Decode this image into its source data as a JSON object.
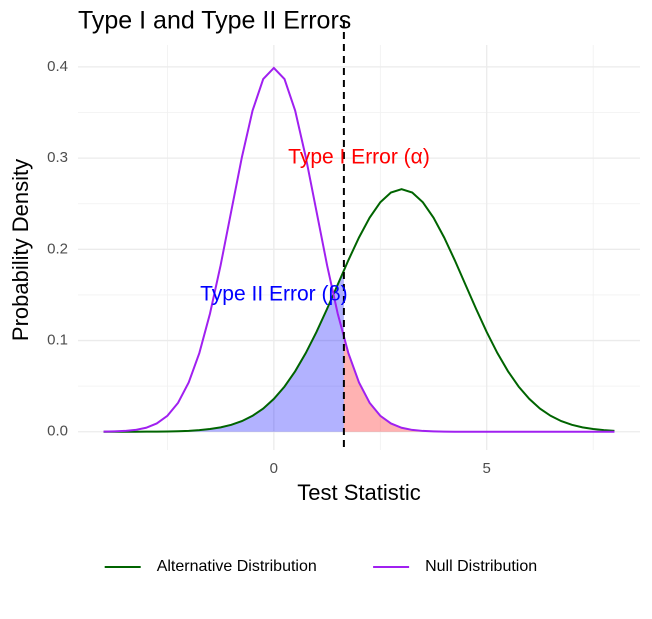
{
  "chart_data": {
    "type": "line",
    "title": "Type I and Type II Errors",
    "x_label": "Test Statistic",
    "y_label": "Probability Density",
    "x": [
      -4,
      -3.75,
      -3.5,
      -3.25,
      -3,
      -2.75,
      -2.5,
      -2.25,
      -2,
      -1.75,
      -1.5,
      -1.25,
      -1,
      -0.75,
      -0.5,
      -0.25,
      0,
      0.25,
      0.5,
      0.75,
      1,
      1.25,
      1.5,
      1.75,
      2,
      2.25,
      2.5,
      2.75,
      3,
      3.25,
      3.5,
      3.75,
      4,
      4.25,
      4.5,
      4.75,
      5,
      5.25,
      5.5,
      5.75,
      6,
      6.25,
      6.5,
      6.75,
      7,
      7.25,
      7.5,
      7.75,
      8
    ],
    "series": [
      {
        "name": "Alternative Distribution",
        "color": "#006400",
        "fill": "#0000ff",
        "fill_side": "left",
        "values": [
          0,
          0,
          0,
          0,
          0.0001,
          0.0002,
          0.0003,
          0.0006,
          0.001,
          0.0018,
          0.003,
          0.0048,
          0.0076,
          0.0117,
          0.0175,
          0.0254,
          0.036,
          0.0495,
          0.0663,
          0.0863,
          0.1093,
          0.1347,
          0.1613,
          0.188,
          0.213,
          0.2347,
          0.2516,
          0.2623,
          0.266,
          0.2623,
          0.2516,
          0.2347,
          0.213,
          0.188,
          0.1613,
          0.1347,
          0.1093,
          0.0863,
          0.0663,
          0.0495,
          0.036,
          0.0254,
          0.0175,
          0.0117,
          0.0076,
          0.0048,
          0.003,
          0.0018,
          0.001
        ]
      },
      {
        "name": "Null Distribution",
        "color": "#a020f0",
        "fill": "#ff0000",
        "fill_side": "right",
        "values": [
          0.0001,
          0.0004,
          0.0009,
          0.002,
          0.0044,
          0.0091,
          0.0175,
          0.0317,
          0.054,
          0.0863,
          0.1295,
          0.1826,
          0.242,
          0.3011,
          0.3521,
          0.3867,
          0.3989,
          0.3867,
          0.3521,
          0.3011,
          0.242,
          0.1826,
          0.1295,
          0.0863,
          0.054,
          0.0317,
          0.0175,
          0.0091,
          0.0044,
          0.002,
          0.0009,
          0.0004,
          0.0001,
          0,
          0,
          0,
          0,
          0,
          0,
          0,
          0,
          0,
          0,
          0,
          0,
          0,
          0,
          0,
          0
        ]
      }
    ],
    "critical_value": 1.645,
    "annotations": [
      {
        "text": "Type I Error (α)",
        "x": 2,
        "y": 0.3,
        "color": "#ff0000"
      },
      {
        "text": "Type II Error (β)",
        "x": 0,
        "y": 0.15,
        "color": "#0000ff"
      }
    ],
    "xlim": [
      -4.6,
      8.6
    ],
    "ylim": [
      -0.02,
      0.424
    ],
    "xticks": [
      0,
      5
    ],
    "yticks": [
      {
        "value": 0,
        "label": "0.0"
      },
      0.1,
      0.2,
      0.3,
      0.4
    ],
    "x_minor_ticks": [
      -2.5,
      2.5,
      7.5
    ],
    "y_minor_ticks": [
      0.05,
      0.15,
      0.25,
      0.35
    ],
    "grid": true,
    "legend": "bottom"
  }
}
